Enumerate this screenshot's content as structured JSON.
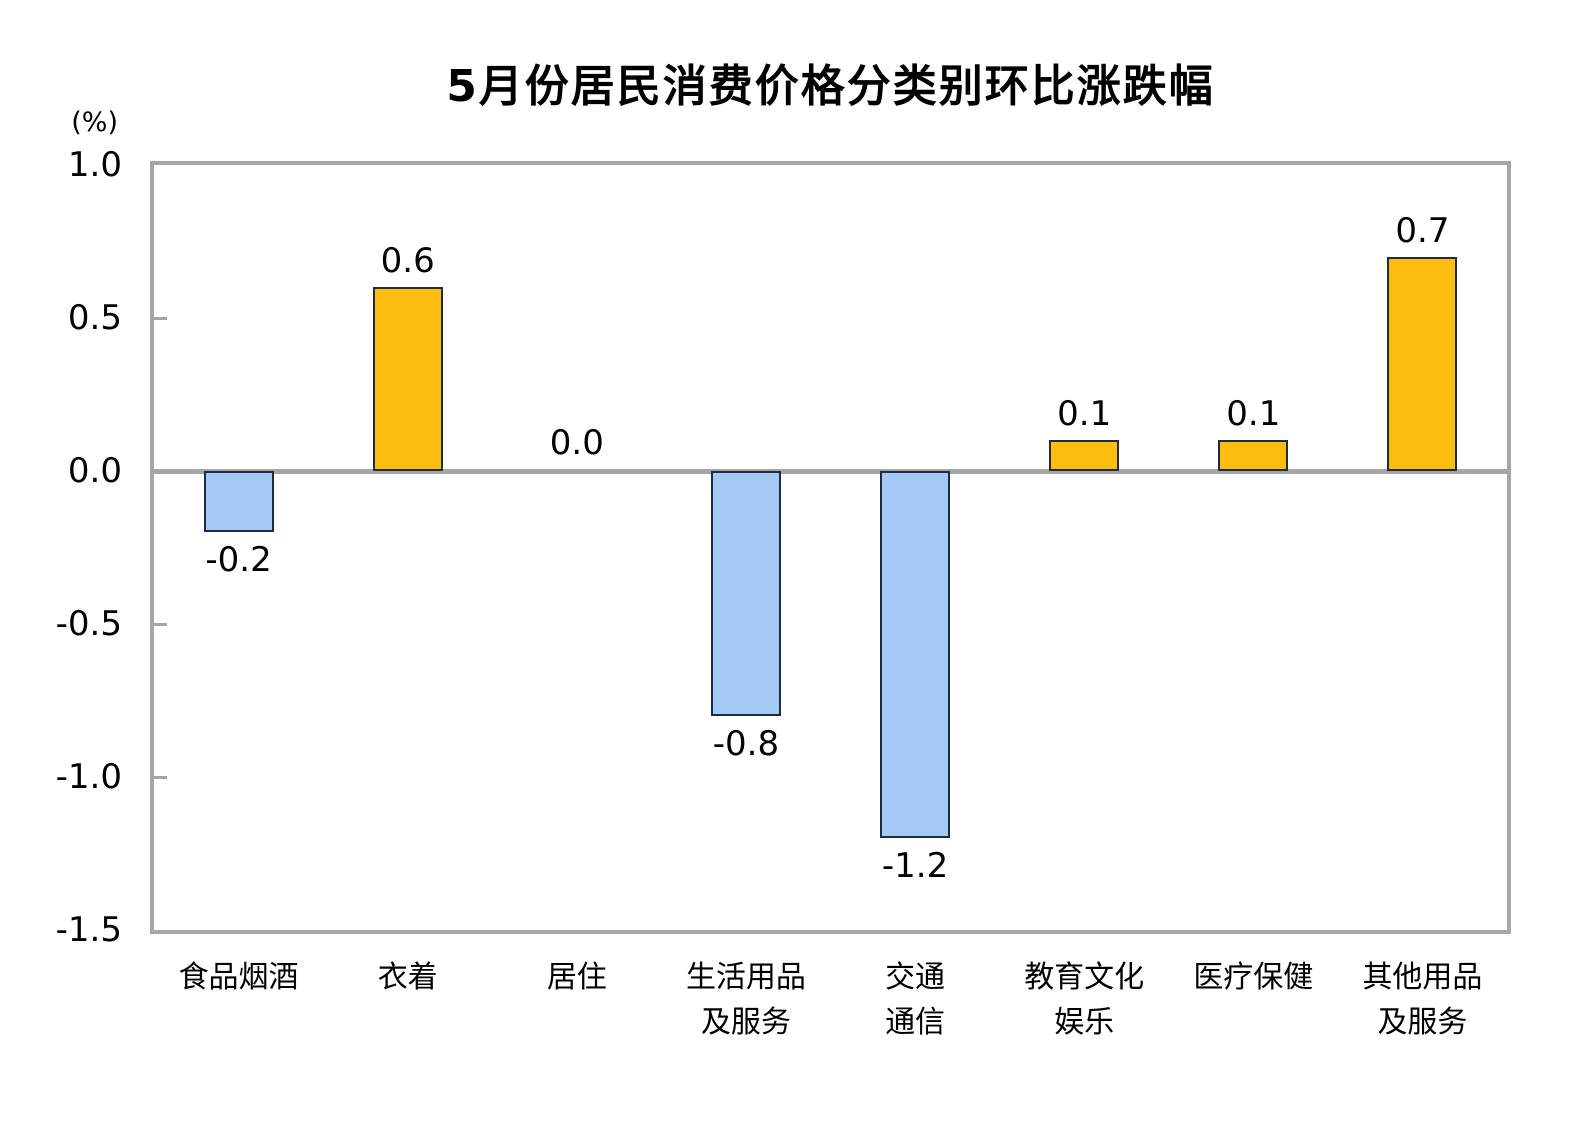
{
  "header": {
    "title": "5月份居民消费价格分类别环比涨跌幅",
    "unit_label": "(%)"
  },
  "chart_data": {
    "type": "bar",
    "title": "5月份居民消费价格分类别环比涨跌幅",
    "unit": "%",
    "categories": [
      "食品烟酒",
      "衣着",
      "居住",
      "生活用品及服务",
      "交通通信",
      "教育文化娱乐",
      "医疗保健",
      "其他用品及服务"
    ],
    "category_label_lines": [
      [
        "食品烟酒"
      ],
      [
        "衣着"
      ],
      [
        "居住"
      ],
      [
        "生活用品",
        "及服务"
      ],
      [
        "交通",
        "通信"
      ],
      [
        "教育文化",
        "娱乐"
      ],
      [
        "医疗保健"
      ],
      [
        "其他用品",
        "及服务"
      ]
    ],
    "values": [
      -0.2,
      0.6,
      0.0,
      -0.8,
      -1.2,
      0.1,
      0.1,
      0.7
    ],
    "value_labels": [
      "-0.2",
      "0.6",
      "0.0",
      "-0.8",
      "-1.2",
      "0.1",
      "0.1",
      "0.7"
    ],
    "ylabel": "(%)",
    "ylim": [
      -1.5,
      1.0
    ],
    "ytick_step": 0.5,
    "yticks": [
      "1.0",
      "0.5",
      "0.0",
      "-0.5",
      "-1.0",
      "-1.5"
    ],
    "grid": "zero-baseline-only",
    "legend": "none",
    "colors": {
      "positive_bar": "#fdbe10",
      "negative_bar": "#a3caf4",
      "bar_border": "#1f2b40",
      "axis_frame": "#a6a6a6",
      "text": "#000000"
    }
  }
}
